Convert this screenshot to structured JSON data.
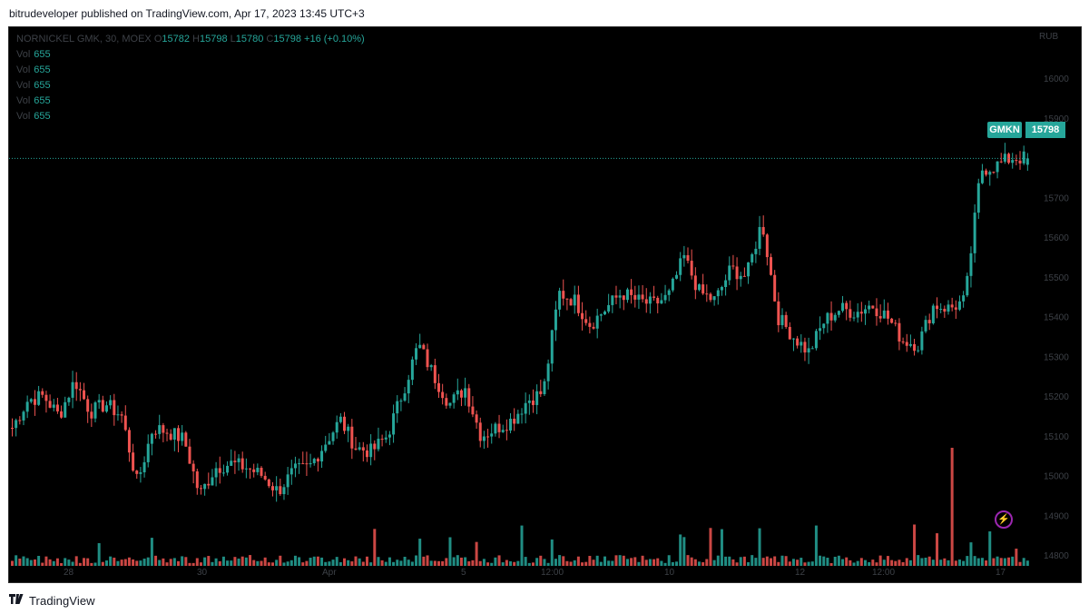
{
  "header": {
    "publisher": "bitrudeveloper published on TradingView.com, Apr 17, 2023 13:45 UTC+3"
  },
  "legend": {
    "title": "NORNICKEL GMK, 30, MOEX",
    "o_label": "O",
    "open": "15782",
    "h_label": "H",
    "high": "15798",
    "l_label": "L",
    "low": "15780",
    "c_label": "C",
    "close": "15798",
    "change": "+16 (+0.10%)",
    "volume_rows": [
      {
        "label": "Vol",
        "value": "655"
      },
      {
        "label": "Vol",
        "value": "655"
      },
      {
        "label": "Vol",
        "value": "655"
      },
      {
        "label": "Vol",
        "value": "655"
      },
      {
        "label": "Vol",
        "value": "655"
      }
    ]
  },
  "price_scale": {
    "currency": "RUB",
    "ticks": [
      "16000",
      "15900",
      "15700",
      "15600",
      "15500",
      "15400",
      "15300",
      "15200",
      "15100",
      "15000",
      "14900",
      "14800"
    ]
  },
  "time_axis": {
    "ticks": [
      "28",
      "30",
      "Apr",
      "5",
      "12:00",
      "10",
      "12",
      "12:00",
      "17"
    ]
  },
  "last_price": {
    "symbol": "GMKN",
    "price": "15798"
  },
  "footer": {
    "brand": "TradingView"
  },
  "colors": {
    "up": "#26a69a",
    "down": "#ef5350",
    "background": "#000000",
    "axis_text": "#3d4147",
    "accent": "#9c27b0"
  },
  "chart_data": {
    "type": "candlestick",
    "symbol": "NORNICKEL GMK",
    "interval": "30",
    "exchange": "MOEX",
    "ylim": [
      14800,
      16000
    ],
    "x_ticks": [
      "28",
      "30",
      "Apr",
      "5",
      "12:00",
      "10",
      "12",
      "12:00",
      "17"
    ],
    "close_path": [
      15120,
      15190,
      15200,
      15150,
      15240,
      15160,
      15180,
      15150,
      14980,
      15120,
      15110,
      15090,
      14950,
      15020,
      15030,
      15020,
      15000,
      14960,
      15010,
      15020,
      15080,
      15140,
      15070,
      15060,
      15100,
      15210,
      15330,
      15250,
      15180,
      15220,
      15100,
      15120,
      15140,
      15190,
      15210,
      15460,
      15440,
      15380,
      15420,
      15460,
      15440,
      15430,
      15450,
      15550,
      15460,
      15440,
      15520,
      15500,
      15640,
      15400,
      15350,
      15310,
      15390,
      15420,
      15410,
      15430,
      15400,
      15340,
      15330,
      15430,
      15420,
      15440,
      15770,
      15780,
      15800,
      15798
    ],
    "last": {
      "open": 15782,
      "high": 15798,
      "low": 15780,
      "close": 15798,
      "change": 16,
      "change_pct": 0.1,
      "volume": 655
    }
  }
}
